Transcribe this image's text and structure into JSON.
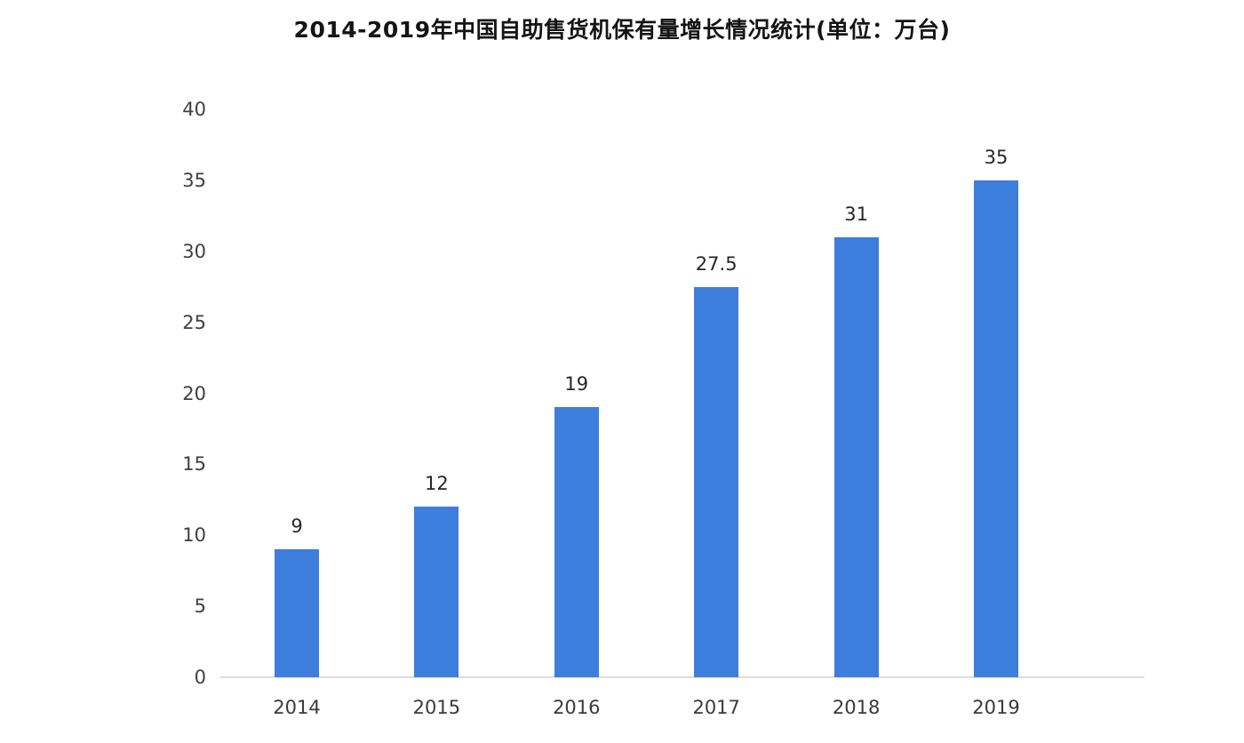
{
  "title": "2014-2019年中国自助售货机保有量增长情况统计(单位：万台)",
  "chart_data": {
    "type": "bar",
    "title": "2014-2019年中国自助售货机保有量增长情况统计(单位：万台)",
    "categories": [
      "2014",
      "2015",
      "2016",
      "2017",
      "2018",
      "2019"
    ],
    "values": [
      9,
      12,
      19,
      27.5,
      31,
      35
    ],
    "data_labels": [
      "9",
      "12",
      "19",
      "27.5",
      "31",
      "35"
    ],
    "xlabel": "",
    "ylabel": "",
    "unit": "万台",
    "ylim": [
      0,
      40
    ],
    "yticks": [
      0,
      5,
      10,
      15,
      20,
      25,
      30,
      35,
      40
    ],
    "grid": false,
    "legend_position": "none",
    "bar_color": "#3d7edc",
    "axis_line_color": "#dcdcdc",
    "label_color": "#262626",
    "tick_color": "#3f3f3f",
    "background_color": "#ffffff"
  }
}
